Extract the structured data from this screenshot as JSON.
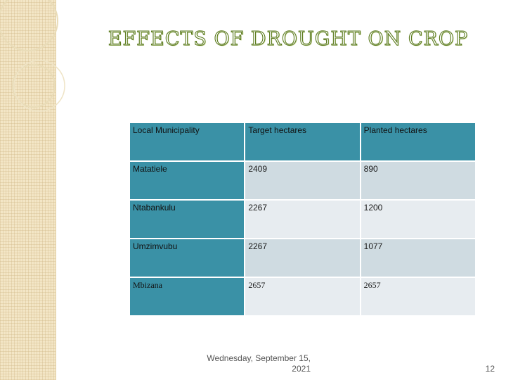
{
  "slide": {
    "title": "EFFECTS OF DROUGHT ON CROP",
    "table": {
      "headers": [
        "Local Municipality",
        "Target hectares",
        "Planted hectares"
      ],
      "rows": [
        {
          "municipality": "Matatiele",
          "target": "2409",
          "planted": "890"
        },
        {
          "municipality": "Ntabankulu",
          "target": "2267",
          "planted": "1200"
        },
        {
          "municipality": "Umzimvubu",
          "target": "2267",
          "planted": "1077"
        },
        {
          "municipality": "Mbizana",
          "target": "2657",
          "planted": "2657"
        }
      ]
    },
    "footer": {
      "date_line1": "Wednesday, September 15,",
      "date_line2": "2021",
      "page_number": "12"
    }
  }
}
